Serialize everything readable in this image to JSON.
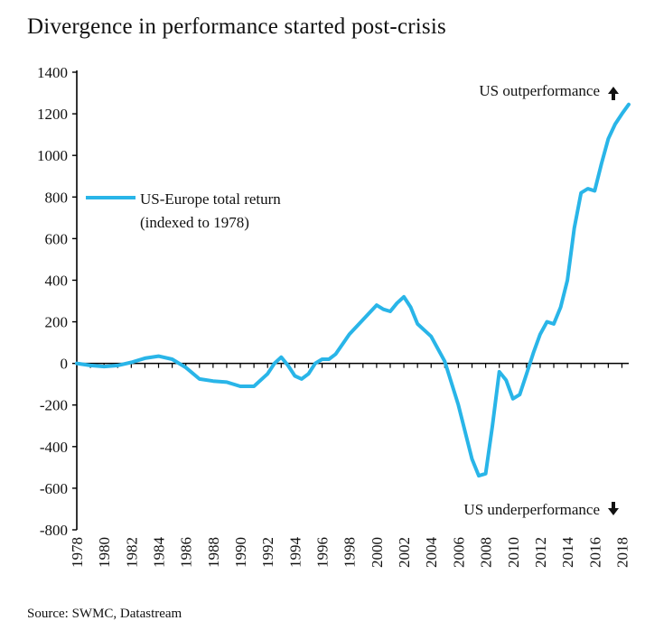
{
  "title": "Divergence in performance started post-crisis",
  "source": "Source: SWMC, Datastream",
  "colors": {
    "line": "#29b5e8",
    "axis": "#000000",
    "text": "#111111"
  },
  "chart_data": {
    "type": "line",
    "title": "Divergence in performance started post-crisis",
    "xlabel": "",
    "ylabel": "",
    "ylim": [
      -800,
      1400
    ],
    "xlim": [
      1978,
      2018.5
    ],
    "grid": false,
    "legend_position": "upper-left",
    "yticks": [
      1400,
      1200,
      1000,
      800,
      600,
      400,
      200,
      0,
      -200,
      -400,
      -600,
      -800
    ],
    "xticks": [
      1978,
      1980,
      1982,
      1984,
      1986,
      1988,
      1990,
      1992,
      1994,
      1996,
      1998,
      2000,
      2002,
      2004,
      2006,
      2008,
      2010,
      2012,
      2014,
      2016,
      2018
    ],
    "annotations": {
      "top": "US outperformance",
      "bottom": "US underperformance"
    },
    "series": [
      {
        "name": "US-Europe total return (indexed to 1978)",
        "legend_lines": [
          "US-Europe total return",
          "(indexed to 1978)"
        ],
        "x": [
          1978,
          1979,
          1980,
          1981,
          1982,
          1983,
          1984,
          1985,
          1986,
          1987,
          1988,
          1989,
          1990,
          1991,
          1992,
          1992.5,
          1993,
          1993.5,
          1994,
          1994.5,
          1995,
          1995.5,
          1996,
          1996.5,
          1997,
          1998,
          1999,
          2000,
          2000.5,
          2001,
          2001.5,
          2002,
          2002.5,
          2003,
          2004,
          2005,
          2006,
          2007,
          2007.5,
          2008,
          2008.5,
          2009,
          2009.5,
          2010,
          2010.5,
          2011,
          2011.5,
          2012,
          2012.5,
          2013,
          2013.5,
          2014,
          2014.5,
          2015,
          2015.5,
          2016,
          2016.5,
          2017,
          2017.5,
          2018,
          2018.5
        ],
        "y": [
          0,
          -10,
          -15,
          -10,
          5,
          25,
          35,
          20,
          -20,
          -75,
          -85,
          -90,
          -110,
          -110,
          -50,
          0,
          30,
          -10,
          -60,
          -75,
          -50,
          0,
          20,
          20,
          45,
          140,
          210,
          280,
          260,
          250,
          290,
          320,
          270,
          190,
          130,
          10,
          -200,
          -460,
          -540,
          -530,
          -300,
          -40,
          -80,
          -170,
          -150,
          -50,
          50,
          140,
          200,
          190,
          270,
          400,
          650,
          820,
          840,
          830,
          960,
          1080,
          1150,
          1200,
          1245
        ]
      }
    ]
  }
}
